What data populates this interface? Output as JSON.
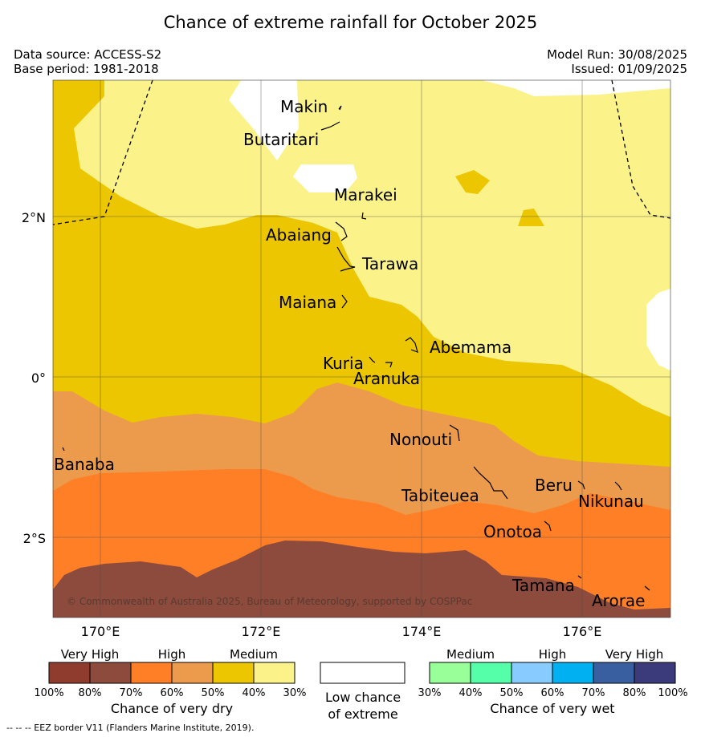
{
  "title": "Chance of extreme rainfall for October 2025",
  "meta": {
    "data_source": "Data source: ACCESS-S2",
    "base_period": "Base period: 1981-2018",
    "model_run": "Model Run: 30/08/2025",
    "issued": "Issued: 01/09/2025"
  },
  "axes": {
    "lat_ticks": [
      "2°N",
      "0°",
      "2°S"
    ],
    "lon_ticks": [
      "170°E",
      "172°E",
      "174°E",
      "176°E"
    ]
  },
  "places": [
    "Makin",
    "Butaritari",
    "Marakei",
    "Abaiang",
    "Tarawa",
    "Maiana",
    "Abemama",
    "Kuria",
    "Aranuka",
    "Nonouti",
    "Banaba",
    "Beru",
    "Tabiteuea",
    "Nikunau",
    "Onotoa",
    "Tamana",
    "Arorae"
  ],
  "copyright": "© Commonwealth of Australia 2025, Bureau of Meteorology, supported by COSPPac",
  "legend": {
    "dry": {
      "categories": [
        "Very High",
        "High",
        "Medium"
      ],
      "percents": [
        "100%",
        "80%",
        "70%",
        "60%",
        "50%",
        "40%",
        "30%"
      ],
      "colors": [
        "#8f3c2f",
        "#8c4b3d",
        "#ff7f27",
        "#eb9b4b",
        "#ecc600",
        "#fbf38a"
      ],
      "caption": "Chance of very dry"
    },
    "low": {
      "caption_line1": "Low chance",
      "caption_line2": "of extreme",
      "color": "#ffffff"
    },
    "wet": {
      "categories": [
        "Medium",
        "High",
        "Very High"
      ],
      "percents": [
        "30%",
        "40%",
        "50%",
        "60%",
        "70%",
        "80%",
        "100%"
      ],
      "colors": [
        "#99ff99",
        "#55ffaa",
        "#88ccff",
        "#00b0f0",
        "#3a5fa0",
        "#3b3b7c"
      ],
      "caption": "Chance of very wet"
    }
  },
  "footnote": "--  --  -- EEZ border V11 (Flanders Marine Institute, 2019)."
}
